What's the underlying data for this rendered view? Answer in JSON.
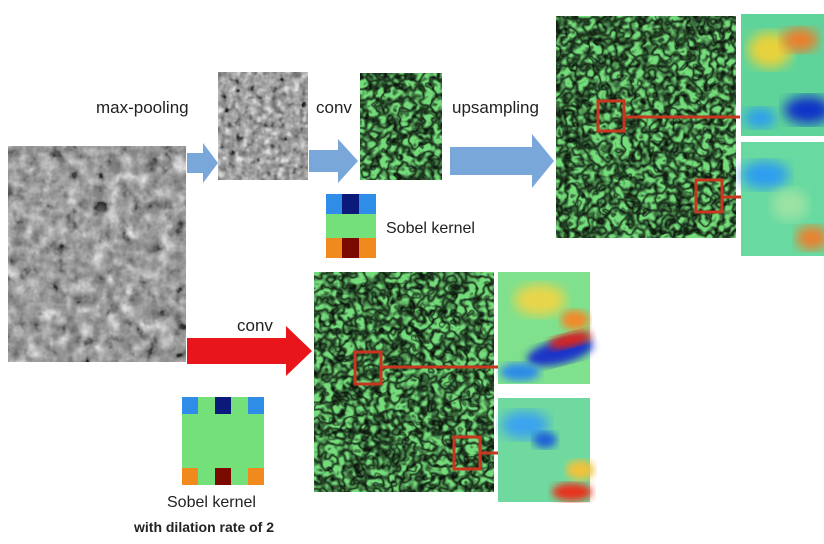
{
  "labels": {
    "max_pooling": "max-pooling",
    "conv_top": "conv",
    "upsampling": "upsampling",
    "sobel_top": "Sobel kernel",
    "conv_bottom": "conv",
    "sobel_bottom_line1": "Sobel kernel",
    "sobel_bottom_line2": "with dilation rate of 2"
  },
  "colors": {
    "blue_arrow": "#7aa7d9",
    "red_arrow": "#e8161b",
    "callout": "#c8361f",
    "jet_background": "#74dc7a",
    "kernel_green": "#73e07a",
    "kernel_blue": "#2f8de8",
    "kernel_navy": "#0b1a7a",
    "kernel_orange": "#f08a1c",
    "kernel_maroon": "#7a0a00"
  }
}
